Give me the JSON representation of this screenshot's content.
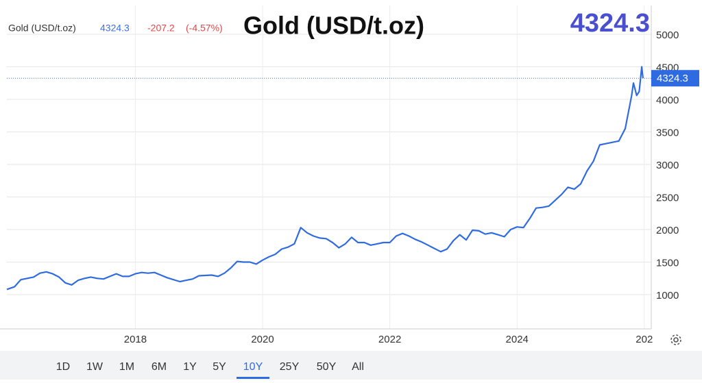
{
  "chart_data": {
    "type": "line",
    "title": "Gold (USD/t.oz)",
    "last": 4324.3,
    "change": -207.2,
    "change_label": "(-4.57%)",
    "ranges": [
      "1D",
      "1W",
      "1M",
      "6M",
      "1Y",
      "5Y",
      "10Y",
      "25Y",
      "50Y",
      "All"
    ],
    "selected_range": 6,
    "x": [
      2015.98,
      2016.1,
      2016.2,
      2016.3,
      2016.4,
      2016.5,
      2016.6,
      2016.7,
      2016.8,
      2016.9,
      2017.0,
      2017.1,
      2017.2,
      2017.3,
      2017.4,
      2017.5,
      2017.6,
      2017.7,
      2017.8,
      2017.9,
      2018.0,
      2018.1,
      2018.2,
      2018.3,
      2018.4,
      2018.5,
      2018.6,
      2018.7,
      2018.8,
      2018.9,
      2019.0,
      2019.2,
      2019.3,
      2019.4,
      2019.5,
      2019.6,
      2019.7,
      2019.8,
      2019.9,
      2020.0,
      2020.1,
      2020.2,
      2020.3,
      2020.4,
      2020.5,
      2020.6,
      2020.7,
      2020.8,
      2020.9,
      2021.0,
      2021.1,
      2021.2,
      2021.3,
      2021.4,
      2021.5,
      2021.6,
      2021.7,
      2021.8,
      2021.9,
      2022.0,
      2022.1,
      2022.2,
      2022.3,
      2022.4,
      2022.5,
      2022.6,
      2022.7,
      2022.8,
      2022.9,
      2023.0,
      2023.1,
      2023.2,
      2023.3,
      2023.4,
      2023.5,
      2023.6,
      2023.7,
      2023.8,
      2023.9,
      2024.0,
      2024.1,
      2024.2,
      2024.3,
      2024.4,
      2024.5,
      2024.6,
      2024.7,
      2024.8,
      2024.9,
      2025.0,
      2025.1,
      2025.2,
      2025.3,
      2025.4,
      2025.5,
      2025.6,
      2025.7,
      2025.8,
      2025.83,
      2025.88,
      2025.92,
      2025.96,
      2025.98
    ],
    "series": [
      {
        "name": "Gold",
        "color": "#2f6be0",
        "values": [
          1080,
          1120,
          1230,
          1250,
          1270,
          1330,
          1350,
          1320,
          1270,
          1180,
          1150,
          1220,
          1250,
          1270,
          1250,
          1240,
          1280,
          1320,
          1280,
          1280,
          1320,
          1340,
          1330,
          1340,
          1300,
          1260,
          1230,
          1200,
          1220,
          1240,
          1290,
          1300,
          1280,
          1330,
          1410,
          1510,
          1500,
          1500,
          1470,
          1530,
          1580,
          1620,
          1700,
          1730,
          1780,
          2030,
          1950,
          1900,
          1870,
          1860,
          1800,
          1720,
          1780,
          1880,
          1800,
          1800,
          1760,
          1780,
          1800,
          1800,
          1900,
          1940,
          1900,
          1850,
          1810,
          1760,
          1710,
          1660,
          1700,
          1830,
          1920,
          1840,
          1990,
          1980,
          1930,
          1950,
          1920,
          1890,
          2000,
          2040,
          2030,
          2170,
          2330,
          2340,
          2360,
          2450,
          2540,
          2650,
          2620,
          2700,
          2900,
          3050,
          3300,
          3320,
          3340,
          3360,
          3550,
          4050,
          4250,
          4060,
          4120,
          4500,
          4324.3
        ]
      }
    ],
    "xlim": [
      2015.98,
      2026.11
    ],
    "xticks": [
      2018,
      2020,
      2022,
      2024,
      {
        "value": 2026,
        "label": "202"
      }
    ],
    "ylim": [
      474,
      5442
    ],
    "yticks": [
      1000,
      1500,
      2000,
      2500,
      3000,
      3500,
      4000,
      4500,
      5000
    ],
    "grid": true
  }
}
